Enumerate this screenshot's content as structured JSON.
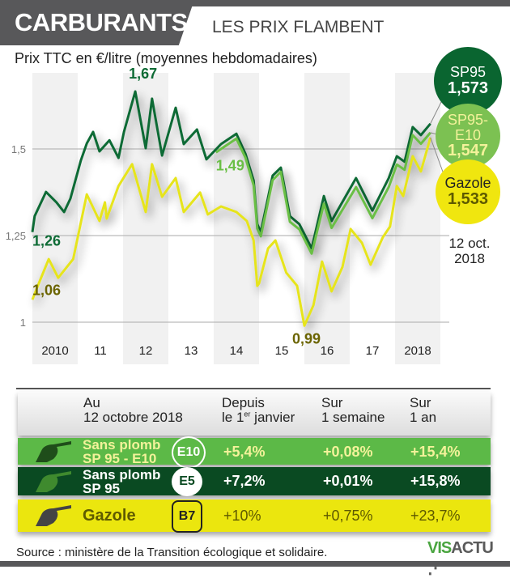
{
  "header": {
    "title": "CARBURANTS",
    "subtitle": "LES PRIX FLAMBENT"
  },
  "unit_label": "Prix TTC en €/litre (moyennes hebdomadaires)",
  "chart_data": {
    "type": "line",
    "title": "LES PRIX FLAMBENT",
    "ylabel": "Prix TTC en €/litre (moyennes hebdomadaires)",
    "ylim": [
      0.95,
      1.7
    ],
    "xlim": [
      2010.0,
      2018.78
    ],
    "yticks": [
      {
        "v": 1.5,
        "label": "1,5"
      },
      {
        "v": 1.25,
        "label": "1,25"
      },
      {
        "v": 1,
        "label": "1"
      }
    ],
    "xticks": [
      {
        "v": 2010,
        "label": "2010"
      },
      {
        "v": 2011,
        "label": "11"
      },
      {
        "v": 2012,
        "label": "12"
      },
      {
        "v": 2013,
        "label": "13"
      },
      {
        "v": 2014,
        "label": "14"
      },
      {
        "v": 2015,
        "label": "15"
      },
      {
        "v": 2016,
        "label": "16"
      },
      {
        "v": 2017,
        "label": "17"
      },
      {
        "v": 2018,
        "label": "2018"
      }
    ],
    "grid": "horizontal",
    "series": [
      {
        "name": "SP95",
        "color": "#0e6b35",
        "x": [
          2010.0,
          2010.05,
          2010.3,
          2010.53,
          2010.7,
          2010.84,
          2011.07,
          2011.2,
          2011.34,
          2011.48,
          2011.7,
          2011.9,
          2012.02,
          2012.27,
          2012.5,
          2012.64,
          2012.86,
          2013.16,
          2013.34,
          2013.63,
          2013.84,
          2014.16,
          2014.5,
          2014.7,
          2014.88,
          2014.96,
          2015.04,
          2015.3,
          2015.48,
          2015.68,
          2015.89,
          2016.16,
          2016.43,
          2016.6,
          2017.14,
          2017.5,
          2017.86,
          2018.04,
          2018.21,
          2018.39,
          2018.57,
          2018.78
        ],
        "y": [
          1.26,
          1.306,
          1.376,
          1.346,
          1.318,
          1.357,
          1.467,
          1.516,
          1.549,
          1.493,
          1.525,
          1.474,
          1.549,
          1.666,
          1.502,
          1.645,
          1.481,
          1.619,
          1.514,
          1.556,
          1.47,
          1.514,
          1.544,
          1.486,
          1.409,
          1.283,
          1.26,
          1.423,
          1.446,
          1.306,
          1.283,
          1.213,
          1.364,
          1.292,
          1.416,
          1.322,
          1.416,
          1.479,
          1.463,
          1.563,
          1.54,
          1.573
        ]
      },
      {
        "name": "SP95-E10",
        "color": "#6abf45",
        "x": [
          2014.05,
          2014.16,
          2014.5,
          2014.7,
          2014.88,
          2014.96,
          2015.04,
          2015.3,
          2015.48,
          2015.68,
          2015.89,
          2016.16,
          2016.43,
          2016.6,
          2017.14,
          2017.5,
          2017.86,
          2018.04,
          2018.21,
          2018.39,
          2018.57,
          2018.78
        ],
        "y": [
          1.49,
          1.5,
          1.53,
          1.475,
          1.395,
          1.27,
          1.248,
          1.41,
          1.434,
          1.29,
          1.268,
          1.198,
          1.342,
          1.272,
          1.39,
          1.3,
          1.39,
          1.455,
          1.44,
          1.54,
          1.515,
          1.547
        ]
      },
      {
        "name": "Gazole",
        "color": "#e6e41a",
        "x": [
          2010.0,
          2010.12,
          2010.36,
          2010.57,
          2010.9,
          2011.2,
          2011.48,
          2011.6,
          2011.64,
          2011.9,
          2012.2,
          2012.5,
          2012.64,
          2012.86,
          2013.16,
          2013.34,
          2013.7,
          2013.87,
          2014.16,
          2014.5,
          2014.73,
          2014.88,
          2014.96,
          2015.0,
          2015.2,
          2015.36,
          2015.6,
          2015.84,
          2016.0,
          2016.2,
          2016.39,
          2016.6,
          2016.84,
          2017.02,
          2017.27,
          2017.46,
          2017.73,
          2017.89,
          2018.04,
          2018.18,
          2018.39,
          2018.57,
          2018.78
        ],
        "y": [
          1.065,
          1.105,
          1.182,
          1.128,
          1.182,
          1.369,
          1.292,
          1.346,
          1.299,
          1.393,
          1.456,
          1.318,
          1.456,
          1.362,
          1.416,
          1.318,
          1.374,
          1.311,
          1.334,
          1.318,
          1.292,
          1.236,
          1.105,
          1.112,
          1.213,
          1.236,
          1.143,
          1.105,
          0.99,
          1.049,
          1.175,
          1.089,
          1.159,
          1.269,
          1.229,
          1.166,
          1.245,
          1.276,
          1.393,
          1.364,
          1.479,
          1.435,
          1.533
        ]
      }
    ],
    "annotations": [
      {
        "label": "1,67",
        "x": 2012.27,
        "y": 1.67,
        "color": "#0e6b35"
      },
      {
        "label": "1,26",
        "x": 2010.0,
        "y": 1.26,
        "color": "#0e6b35"
      },
      {
        "label": "1,06",
        "x": 2010.0,
        "y": 1.06,
        "color": "#6b6400"
      },
      {
        "label": "1,49",
        "x": 2014.05,
        "y": 1.49,
        "color": "#6abf45"
      },
      {
        "label": "0,99",
        "x": 2016.0,
        "y": 0.99,
        "color": "#6b6400"
      }
    ],
    "end_labels": [
      {
        "name": "SP95",
        "value": "1,573",
        "bg": "#0a6530",
        "name_color": "#ffffff",
        "value_color": "#ffffff"
      },
      {
        "name": "SP95-\nE10",
        "name_lines": [
          "SP95-",
          "E10"
        ],
        "value": "1,547",
        "bg": "#7cc152",
        "name_color": "#f3f29a",
        "value_color": "#f3f29a"
      },
      {
        "name": "Gazole",
        "value": "1,533",
        "bg": "#f0e60f",
        "name_color": "#222222",
        "value_color": "#5e5a00"
      }
    ],
    "end_date": [
      "12 oct.",
      "2018"
    ]
  },
  "table": {
    "headers": [
      [
        "Au",
        "12 octobre 2018"
      ],
      [
        "Depuis",
        "le 1",
        "er",
        " janvier"
      ],
      [
        "Sur",
        "1 semaine"
      ],
      [
        "Sur",
        "1 an"
      ]
    ],
    "rows": [
      {
        "name": [
          "Sans plomb",
          "SP 95 - E10"
        ],
        "badge": "E10",
        "ytd": "+5,4%",
        "week": "+0,08%",
        "year": "+15,4%"
      },
      {
        "name": [
          "Sans plomb",
          "SP 95"
        ],
        "badge": "E5",
        "ytd": "+7,2%",
        "week": "+0,01%",
        "year": "+15,8%"
      },
      {
        "name": [
          "Gazole"
        ],
        "badge": "B7",
        "ytd": "+10%",
        "week": "+0,75%",
        "year": "+23,7%"
      }
    ],
    "icons": [
      "fuel-pump-icon",
      "fuel-pump-icon",
      "fuel-pump-icon"
    ]
  },
  "footer": {
    "source": "Source : ministère de la Transition écologique et solidaire.",
    "logo": [
      "VIS",
      "ACTU"
    ]
  }
}
